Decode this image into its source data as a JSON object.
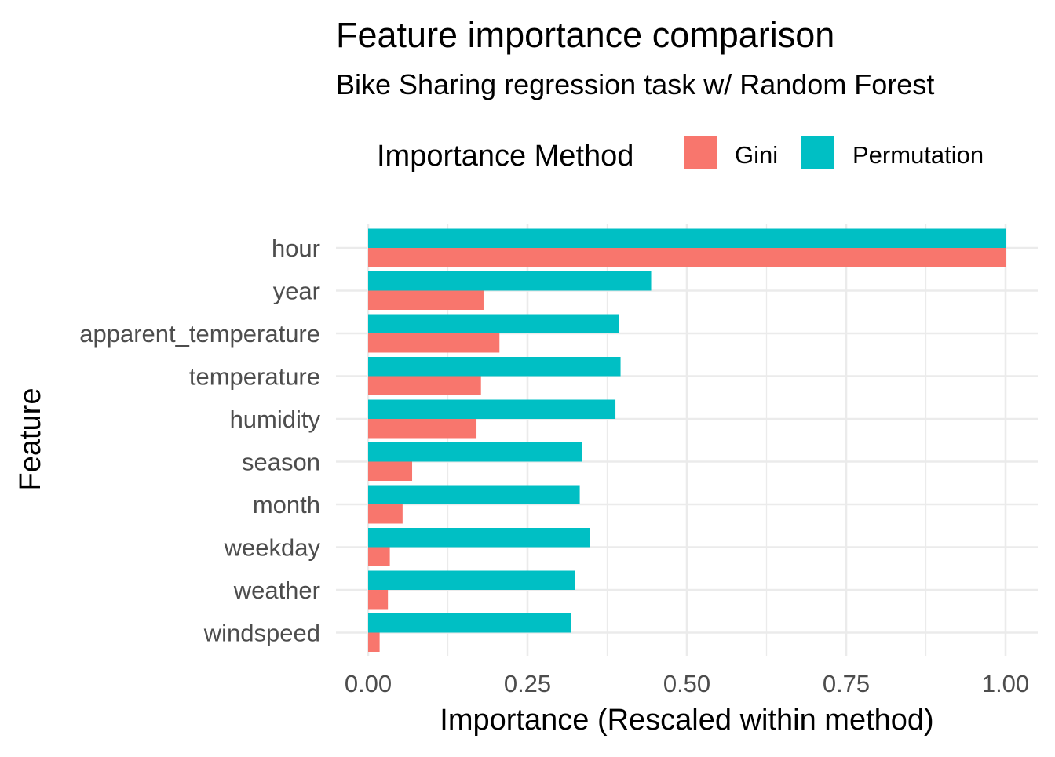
{
  "chart_data": {
    "type": "bar",
    "orientation": "horizontal",
    "title": "Feature importance comparison",
    "subtitle": "Bike Sharing regression task w/ Random Forest",
    "xlabel": "Importance (Rescaled within method)",
    "ylabel": "Feature",
    "xlim": [
      0,
      1
    ],
    "x_ticks": [
      "0.00",
      "0.25",
      "0.50",
      "0.75",
      "1.00"
    ],
    "grid": true,
    "legend": {
      "title": "Importance Method",
      "position": "top",
      "entries": [
        "Gini",
        "Permutation"
      ]
    },
    "categories": [
      "hour",
      "year",
      "apparent_temperature",
      "temperature",
      "humidity",
      "season",
      "month",
      "weekday",
      "weather",
      "windspeed"
    ],
    "series": [
      {
        "name": "Gini",
        "color": "#F8766D",
        "values": [
          1.0,
          0.181,
          0.206,
          0.177,
          0.17,
          0.069,
          0.054,
          0.034,
          0.031,
          0.018
        ]
      },
      {
        "name": "Permutation",
        "color": "#00BFC4",
        "values": [
          1.0,
          0.444,
          0.394,
          0.396,
          0.388,
          0.336,
          0.332,
          0.348,
          0.324,
          0.318
        ]
      }
    ]
  }
}
